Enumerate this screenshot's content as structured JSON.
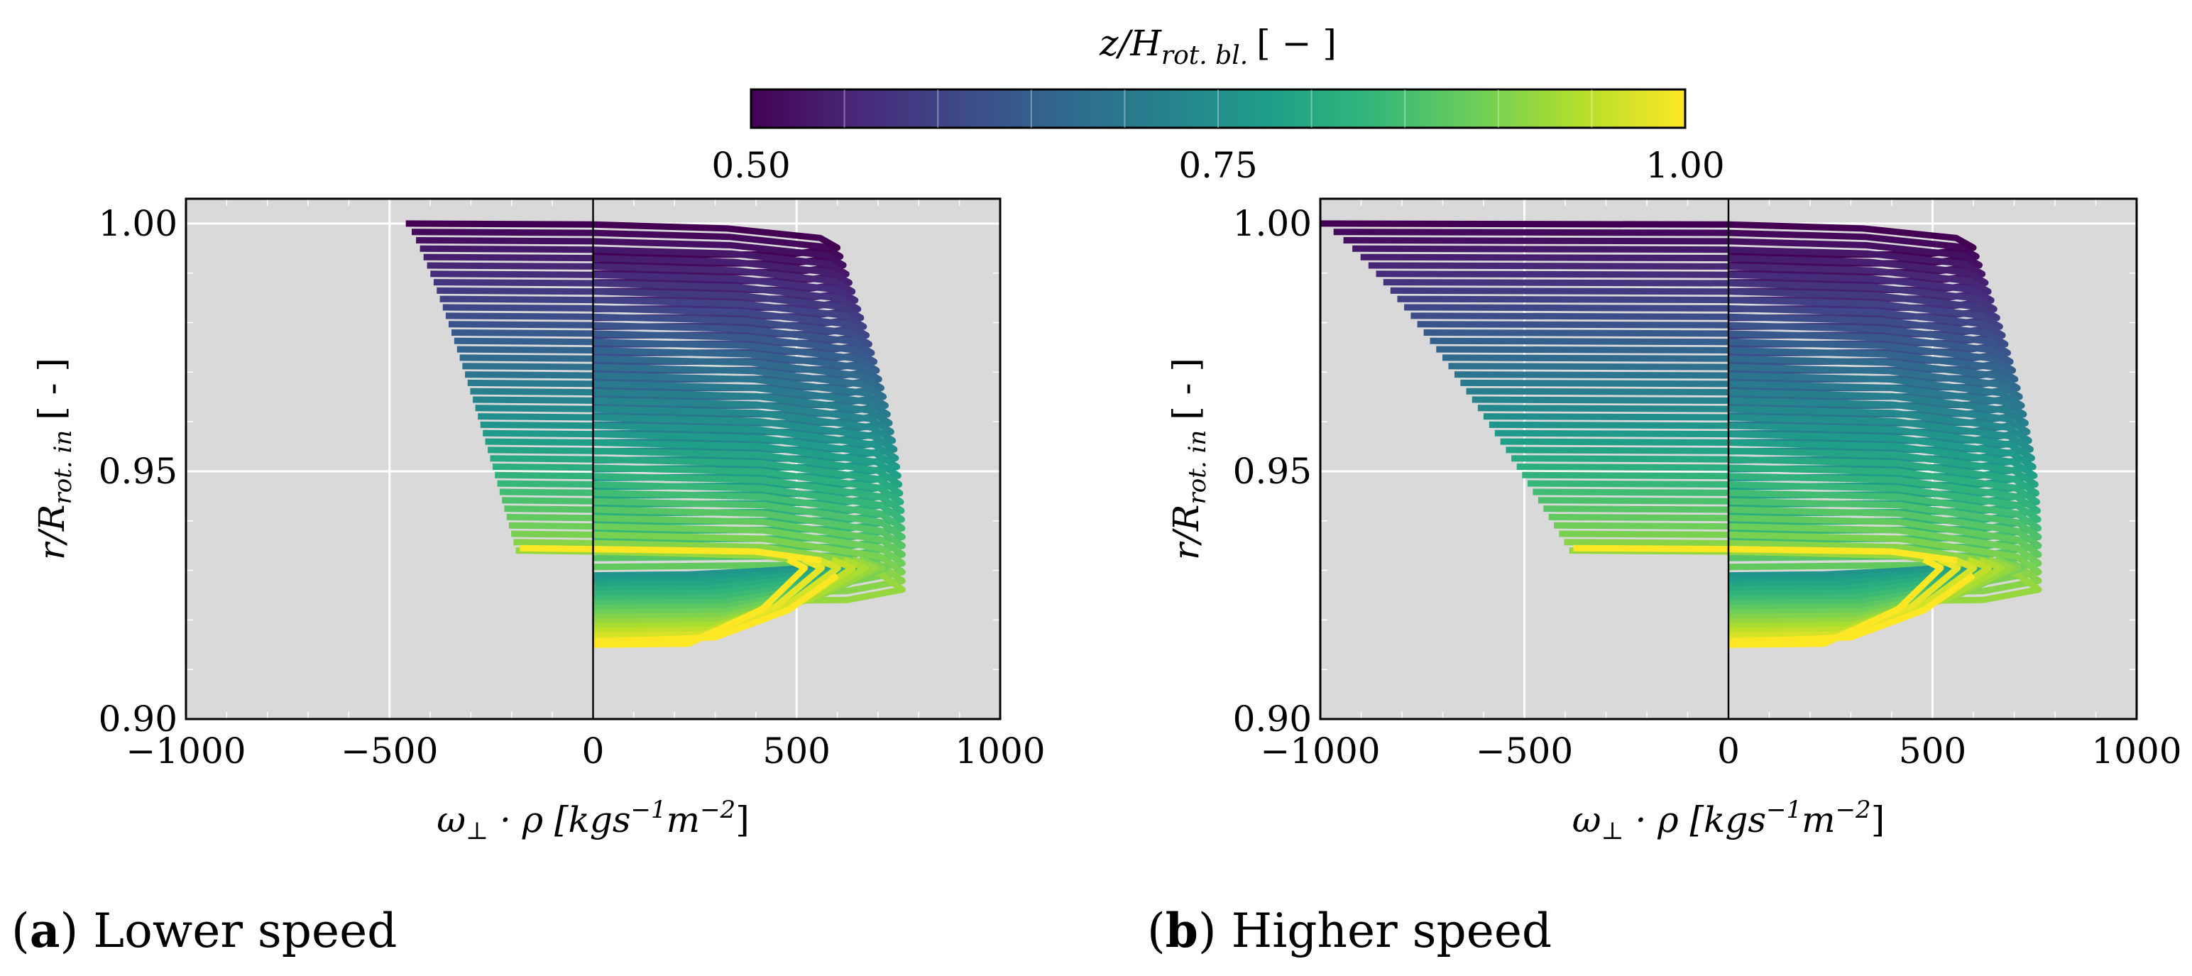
{
  "colorbar": {
    "label": "z/H",
    "label_sub": "rot. bl.",
    "label_units": "[ − ]",
    "ticks": [
      "0.50",
      "0.75",
      "1.00"
    ],
    "tick_values": [
      0.5,
      0.75,
      1.0
    ],
    "range": [
      0.5,
      1.0
    ],
    "colormap": "viridis",
    "colors": [
      "#440154",
      "#482878",
      "#3e4989",
      "#31688e",
      "#26828e",
      "#1f9e89",
      "#35b779",
      "#6ece58",
      "#b5de2b",
      "#fde725"
    ]
  },
  "chart_data": [
    {
      "type": "line",
      "panel": "a",
      "caption_letter": "a",
      "caption_text": "Lower speed",
      "xlabel_prefix": "ω",
      "xlabel_sub": "⊥",
      "xlabel_suffix": " · ρ [kgs",
      "xlabel_exp1": "−1",
      "xlabel_mid": "m",
      "xlabel_exp2": "−2",
      "xlabel_end": "]",
      "ylabel_main": "r/R",
      "ylabel_sub": "rot. in",
      "ylabel_units": "[ - ]",
      "xlim": [
        -1000,
        1000
      ],
      "ylim": [
        0.9,
        1.005
      ],
      "xticks": [
        "−1000",
        "−500",
        "0",
        "500",
        "1000"
      ],
      "xtick_values": [
        -1000,
        -500,
        0,
        500,
        1000
      ],
      "yticks": [
        "0.90",
        "0.95",
        "1.00"
      ],
      "ytick_values": [
        0.9,
        0.95,
        1.0
      ],
      "grid": true,
      "background": "#d9d9d9",
      "series_description": "Each profile is colored by z/H_rot.bl. (0.5 to 1.0); upper branch spans r/R 1.00 to ~0.935, lower branch ~0.933 to ~0.915",
      "upper_profiles": {
        "count": 40,
        "r_range": [
          1.0,
          0.934
        ],
        "min_value_range": [
          -460,
          -190
        ],
        "max_value_range": [
          600,
          760
        ],
        "z_range": [
          0.5,
          0.92
        ]
      },
      "lower_profiles": {
        "count": 16,
        "r_range": [
          0.929,
          0.915
        ],
        "peak_r": 0.931,
        "peak_value_range": [
          520,
          720
        ],
        "z_range": [
          0.76,
          1.0
        ]
      }
    },
    {
      "type": "line",
      "panel": "b",
      "caption_letter": "b",
      "caption_text": "Higher speed",
      "xlabel_prefix": "ω",
      "xlabel_sub": "⊥",
      "xlabel_suffix": " · ρ [kgs",
      "xlabel_exp1": "−1",
      "xlabel_mid": "m",
      "xlabel_exp2": "−2",
      "xlabel_end": "]",
      "ylabel_main": "r/R",
      "ylabel_sub": "rot. in",
      "ylabel_units": "[ - ]",
      "xlim": [
        -1000,
        1000
      ],
      "ylim": [
        0.9,
        1.005
      ],
      "xticks": [
        "−1000",
        "−500",
        "0",
        "500",
        "1000"
      ],
      "xtick_values": [
        -1000,
        -500,
        0,
        500,
        1000
      ],
      "yticks": [
        "0.90",
        "0.95",
        "1.00"
      ],
      "ytick_values": [
        0.9,
        0.95,
        1.0
      ],
      "grid": true,
      "background": "#d9d9d9",
      "series_description": "Each profile is colored by z/H_rot.bl. (0.5 to 1.0); upper branch spans r/R 1.00 to ~0.935, lower branch ~0.933 to ~0.915",
      "upper_profiles": {
        "count": 40,
        "r_range": [
          1.0,
          0.934
        ],
        "min_value_range": [
          -1000,
          -390
        ],
        "max_value_range": [
          600,
          760
        ],
        "z_range": [
          0.5,
          0.92
        ]
      },
      "lower_profiles": {
        "count": 16,
        "r_range": [
          0.929,
          0.915
        ],
        "peak_r": 0.931,
        "peak_value_range": [
          520,
          720
        ],
        "z_range": [
          0.76,
          1.0
        ]
      }
    }
  ]
}
